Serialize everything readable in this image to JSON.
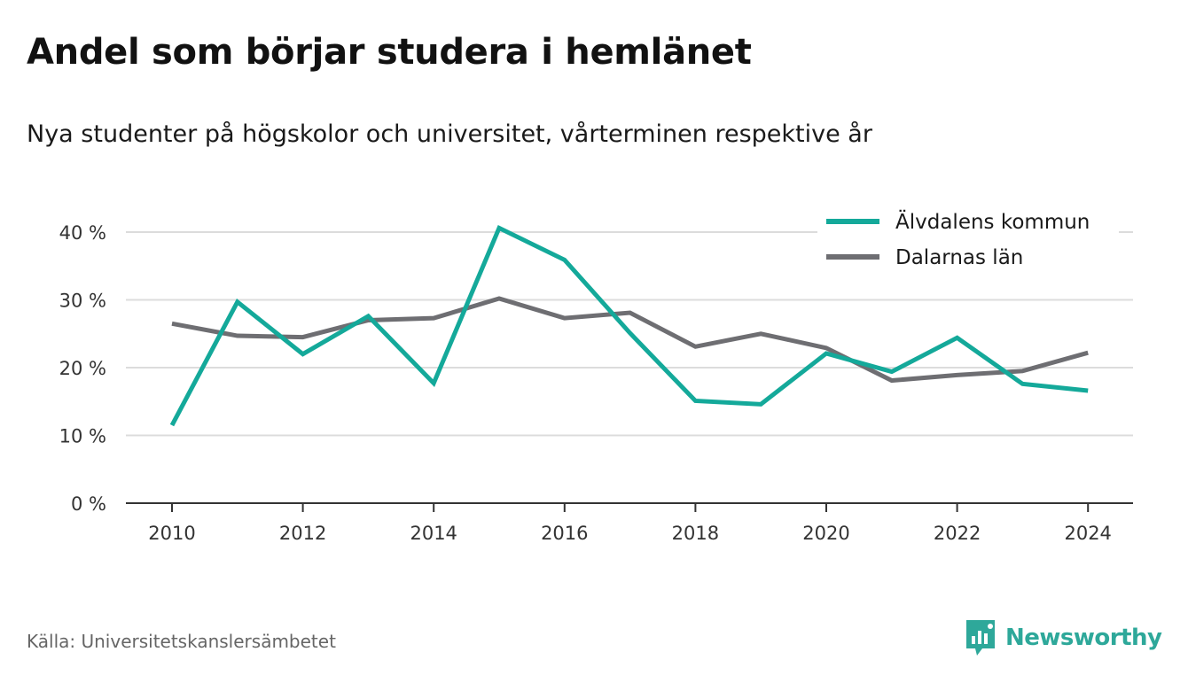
{
  "title": "Andel som börjar studera i hemlänet",
  "subtitle": "Nya studenter på högskolor och universitet, vårterminen respektive år",
  "source": "Källa: Universitetskanslersämbetet",
  "brand": {
    "name": "Newsworthy",
    "icon": "newsworthy-logo-icon",
    "color": "#2ea89a"
  },
  "chart_data": {
    "type": "line",
    "x": [
      2010,
      2011,
      2012,
      2013,
      2014,
      2015,
      2016,
      2017,
      2018,
      2019,
      2020,
      2021,
      2022,
      2023,
      2024
    ],
    "x_ticks": [
      "2010",
      "2012",
      "2014",
      "2016",
      "2018",
      "2020",
      "2022",
      "2024"
    ],
    "y_ticks": [
      "0 %",
      "10 %",
      "20 %",
      "30 %",
      "40 %"
    ],
    "ylim": [
      0,
      40
    ],
    "grid": true,
    "legend_position": "top-right",
    "series": [
      {
        "name": "Älvdalens kommun",
        "color": "#14a99a",
        "values": [
          11.5,
          29.7,
          22.0,
          27.6,
          17.7,
          40.6,
          35.9,
          25.1,
          15.1,
          14.6,
          22.1,
          19.4,
          24.4,
          17.6,
          16.6
        ]
      },
      {
        "name": "Dalarnas län",
        "color": "#6e6e72",
        "values": [
          26.5,
          24.7,
          24.5,
          27.0,
          27.3,
          30.2,
          27.3,
          28.1,
          23.1,
          25.0,
          22.9,
          18.1,
          18.9,
          19.5,
          22.2
        ]
      }
    ]
  }
}
